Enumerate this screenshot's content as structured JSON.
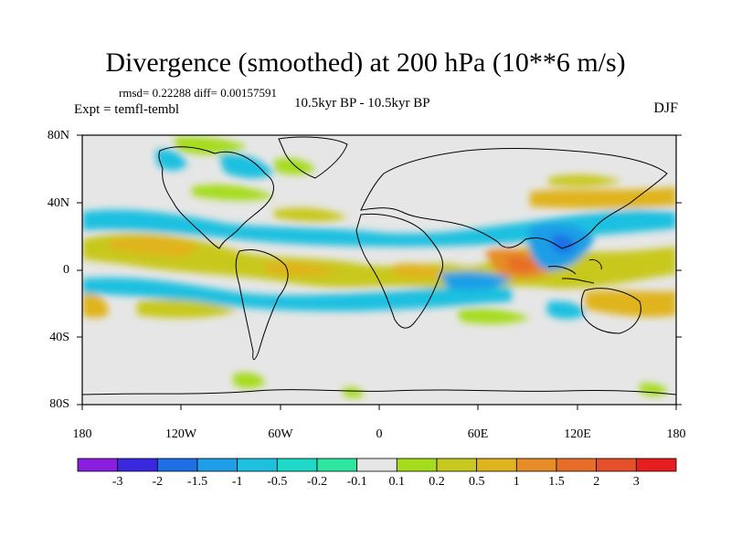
{
  "title": "Divergence (smoothed) at 200 hPa (10**6 m/s)",
  "stats": "rmsd= 0.22288 diff= 0.00157591",
  "expt": "Expt = temfl-tembl",
  "subtitle": "10.5kyr BP - 10.5kyr BP",
  "season": "DJF",
  "lat_labels": [
    "80N",
    "40N",
    "0",
    "40S",
    "80S"
  ],
  "lon_labels": [
    "180",
    "120W",
    "60W",
    "0",
    "60E",
    "120E",
    "180"
  ],
  "colorbar": {
    "labels": [
      "-3",
      "-2",
      "-1.5",
      "-1",
      "-0.5",
      "-0.2",
      "-0.1",
      "0.1",
      "0.2",
      "0.5",
      "1",
      "1.5",
      "2",
      "3"
    ],
    "colors": [
      "#8a1ee0",
      "#3a28e0",
      "#1e6ee6",
      "#1e9ee6",
      "#1ec0e0",
      "#1ed8c8",
      "#2ee6a0",
      "#e6e6e6",
      "#a6dc1e",
      "#c8c81e",
      "#e0b41e",
      "#e68c28",
      "#e66e28",
      "#e65028",
      "#e61e1e"
    ]
  },
  "colors": {
    "frame": "#000000",
    "land_outline": "#000000",
    "neutral": "#e6e6e6"
  }
}
